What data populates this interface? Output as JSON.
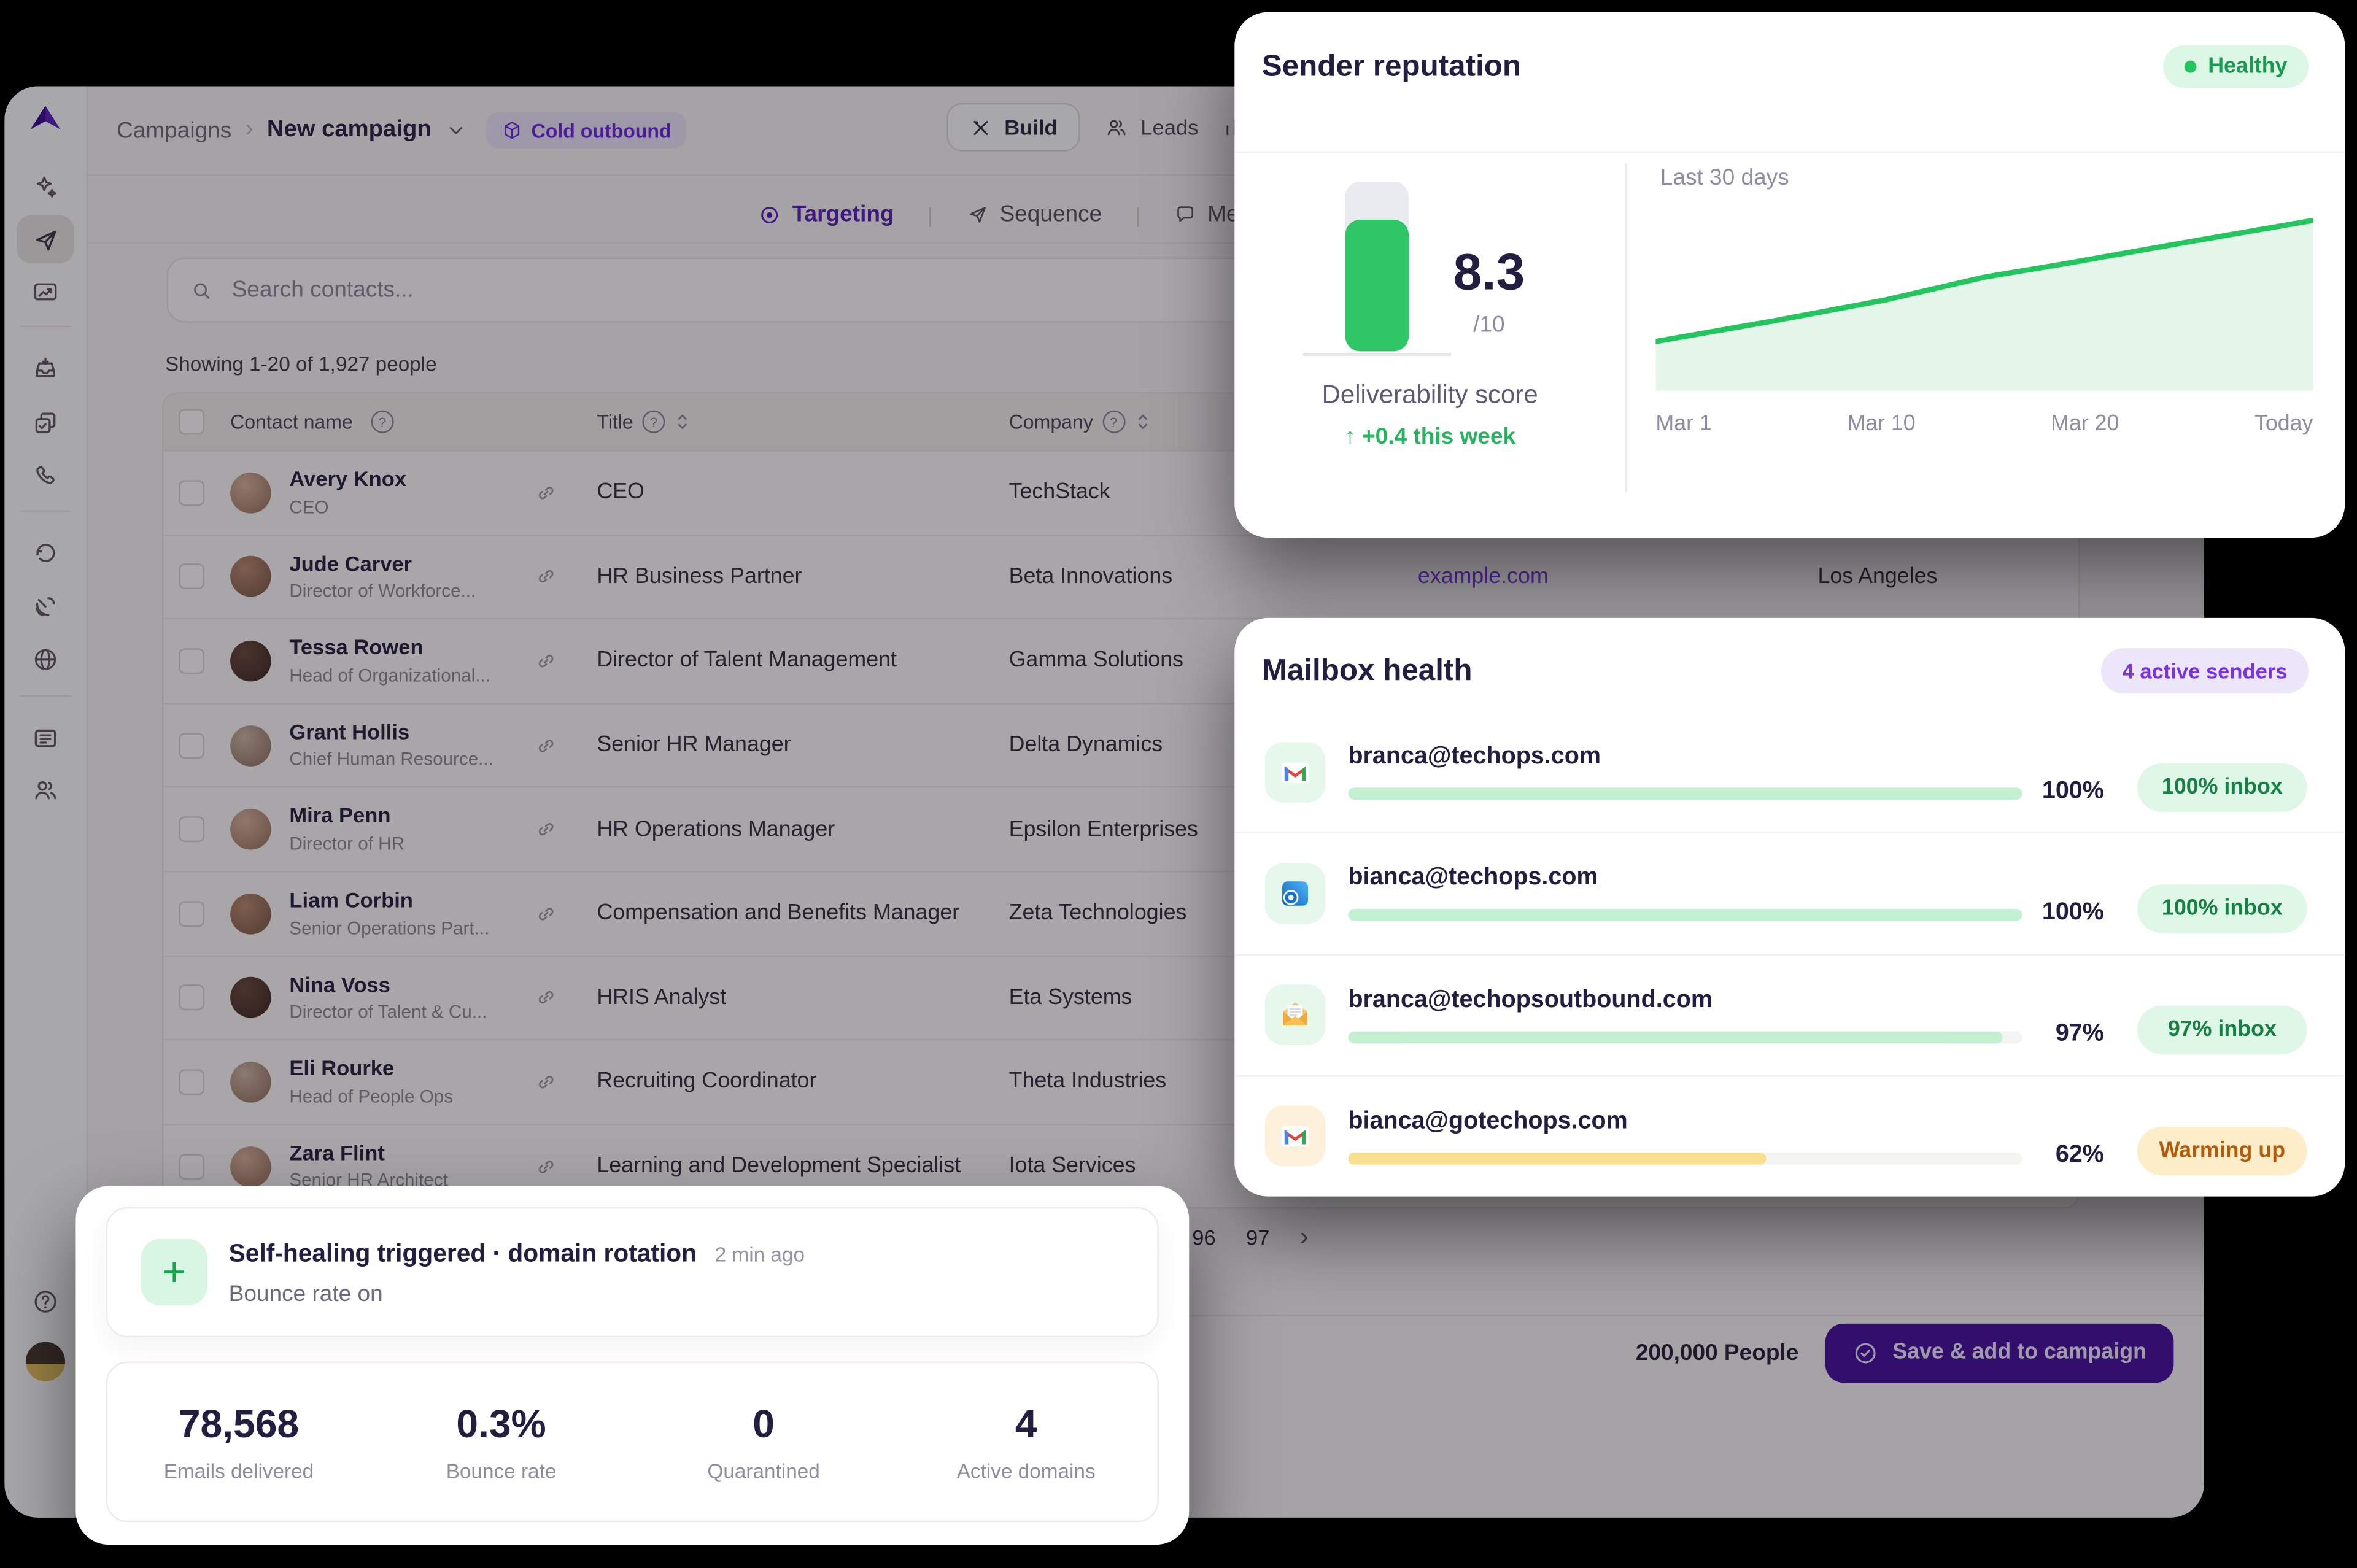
{
  "icons": {
    "question_mark": "?",
    "plus": "+",
    "chevron_right": "›",
    "dot": "●"
  },
  "breadcrumb": {
    "root": "Campaigns",
    "separator": "›",
    "current": "New campaign",
    "badge_label": "Cold outbound"
  },
  "toolbar": {
    "build_label": "Build",
    "leads_label": "Leads"
  },
  "tabs": {
    "targeting": "Targeting",
    "sequence": "Sequence",
    "messaging": "Messaging",
    "separator": "|"
  },
  "contacts": {
    "search_placeholder": "Search contacts...",
    "summary": "Showing 1-20 of 1,927 people",
    "columns": {
      "contact": "Contact name",
      "title": "Title",
      "company": "Company"
    },
    "rows": [
      {
        "name": "Avery Knox",
        "role": "CEO",
        "title": "CEO",
        "company": "TechStack",
        "website": "",
        "location": ""
      },
      {
        "name": "Jude Carver",
        "role": "Director of Workforce...",
        "title": "HR Business Partner",
        "company": "Beta Innovations",
        "website": "example.com",
        "location": "Los Angeles"
      },
      {
        "name": "Tessa Rowen",
        "role": "Head of Organizational...",
        "title": "Director of Talent Management",
        "company": "Gamma Solutions",
        "website": "",
        "location": ""
      },
      {
        "name": "Grant Hollis",
        "role": "Chief Human Resource...",
        "title": "Senior HR Manager",
        "company": "Delta Dynamics",
        "website": "",
        "location": ""
      },
      {
        "name": "Mira Penn",
        "role": "Director of HR",
        "title": "HR Operations Manager",
        "company": "Epsilon Enterprises",
        "website": "",
        "location": ""
      },
      {
        "name": "Liam Corbin",
        "role": "Senior Operations Part...",
        "title": "Compensation and Benefits Manager",
        "company": "Zeta Technologies",
        "website": "",
        "location": ""
      },
      {
        "name": "Nina Voss",
        "role": "Director of Talent & Cu...",
        "title": "HRIS Analyst",
        "company": "Eta Systems",
        "website": "",
        "location": ""
      },
      {
        "name": "Eli Rourke",
        "role": "Head of People Ops",
        "title": "Recruiting Coordinator",
        "company": "Theta Industries",
        "website": "",
        "location": ""
      },
      {
        "name": "Zara Flint",
        "role": "Senior HR Architect",
        "title": "Learning and Development Specialist",
        "company": "Iota Services",
        "website": "",
        "location": ""
      }
    ],
    "pagination": {
      "pages": [
        "96",
        "97"
      ],
      "next": "›"
    }
  },
  "footer": {
    "people_count": "200,000 People",
    "save_label": "Save & add to campaign",
    "save_bg": "#45129b"
  },
  "sender_reputation": {
    "title": "Sender reputation",
    "status_label": "Healthy",
    "status_color": "#22c55e",
    "score": "8.3",
    "score_suffix": "/10",
    "score_fill_pct": 78,
    "score_label": "Deliverability score",
    "delta_label": "↑ +0.4 this week"
  },
  "chart_data": {
    "type": "area",
    "title": "Last 30 days",
    "x_labels": [
      "Mar 1",
      "Mar 10",
      "Mar 20",
      "Today"
    ],
    "series": [
      {
        "name": "Deliverability score",
        "x_frac": [
          0,
          0.18,
          0.35,
          0.5,
          0.62,
          0.8,
          1
        ],
        "y_frac_top": [
          0.74,
          0.63,
          0.52,
          0.4,
          0.33,
          0.22,
          0.1
        ],
        "y_values_est": [
          7.3,
          7.5,
          7.7,
          7.9,
          8.0,
          8.2,
          8.3
        ]
      }
    ],
    "ylim_est": [
      7,
      8.5
    ],
    "grid": false,
    "line_color": "#22c55e",
    "fill_color": "#e4f7ea"
  },
  "mailbox_health": {
    "title": "Mailbox health",
    "badge": "4 active senders",
    "senders": [
      {
        "email": "branca@techops.com",
        "icon": "gmail",
        "pct": 100,
        "pct_label": "100%",
        "badge": "100% inbox",
        "state": "ok"
      },
      {
        "email": "bianca@techops.com",
        "icon": "outlook",
        "pct": 100,
        "pct_label": "100%",
        "badge": "100% inbox",
        "state": "ok"
      },
      {
        "email": "branca@techopsoutbound.com",
        "icon": "envelope",
        "pct": 97,
        "pct_label": "97%",
        "badge": "97% inbox",
        "state": "ok"
      },
      {
        "email": "bianca@gotechops.com",
        "icon": "gmail",
        "pct": 62,
        "pct_label": "62%",
        "badge": "Warming up",
        "state": "warming"
      }
    ]
  },
  "self_healing": {
    "title": "Self-healing triggered · domain rotation",
    "time": "2 min ago",
    "subtitle": "Bounce rate on",
    "stats": [
      {
        "value": "78,568",
        "label": "Emails delivered"
      },
      {
        "value": "0.3%",
        "label": "Bounce rate"
      },
      {
        "value": "0",
        "label": "Quarantined"
      },
      {
        "value": "4",
        "label": "Active domains"
      }
    ]
  }
}
